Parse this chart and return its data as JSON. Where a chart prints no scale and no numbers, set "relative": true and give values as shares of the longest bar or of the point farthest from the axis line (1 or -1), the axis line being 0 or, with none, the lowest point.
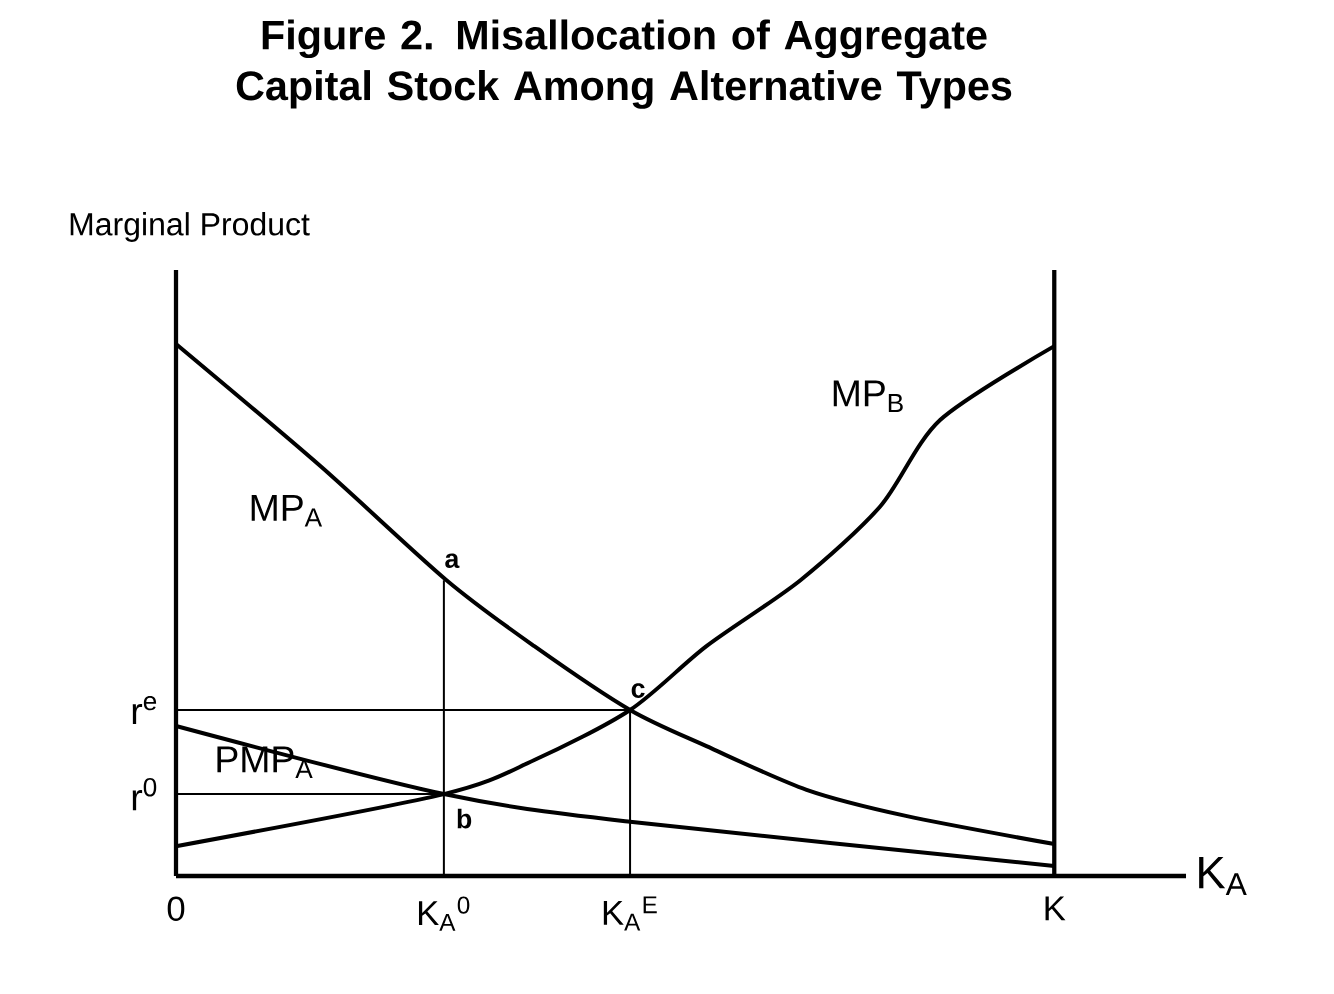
{
  "chart_data": {
    "type": "line",
    "title": "Figure 2.  Misallocation of Aggregate Capital Stock Among Alternative Types",
    "xlabel": "K$_{A}$",
    "ylabel": "Marginal Product",
    "relative": true,
    "marker": "none",
    "line_style": "solid",
    "xlim": [
      0,
      1.15
    ],
    "xticks": [
      {
        "value": 0,
        "label": "0"
      },
      {
        "value": 0.305,
        "label": "K$_{A}$$^{0}$"
      },
      {
        "value": 0.517,
        "label": "K$_{A}$$^{E}$"
      },
      {
        "value": 1,
        "label": "K"
      }
    ],
    "series": [
      {
        "name": "MP$_{A}$",
        "color": "#000000",
        "x": [
          0,
          0.164,
          0.308,
          0.408,
          0.517,
          0.604,
          0.718,
          0.831,
          1.0
        ],
        "values": [
          1.0,
          0.771,
          0.556,
          0.432,
          0.312,
          0.244,
          0.162,
          0.113,
          0.06
        ]
      },
      {
        "name": "MP$_{B}$",
        "color": "#000000",
        "x": [
          0,
          0.305,
          0.408,
          0.517,
          0.604,
          0.711,
          0.802,
          0.87,
          1.0
        ],
        "values": [
          0.056,
          0.154,
          0.218,
          0.312,
          0.432,
          0.556,
          0.695,
          0.857,
          0.996
        ]
      },
      {
        "name": "PMP$_{A}$",
        "color": "#000000",
        "x": [
          0,
          0.305,
          0.517,
          1.0
        ],
        "values": [
          0.282,
          0.154,
          0.102,
          0.019
        ]
      },
      {
        "color": "#000000",
        "x": [
          0,
          0.517
        ],
        "values": [
          0.312,
          0.312
        ]
      },
      {
        "color": "#000000",
        "x": [
          0,
          0.305
        ],
        "values": [
          0.154,
          0.154
        ]
      },
      {
        "color": "#000000",
        "x": [
          0.305,
          0.305
        ],
        "values": [
          0,
          0.556
        ]
      },
      {
        "color": "#000000",
        "x": [
          0.517,
          0.517
        ],
        "values": [
          0,
          0.312
        ]
      }
    ],
    "ref_lines": [
      {
        "axis": "x",
        "value": 1
      }
    ],
    "annotations": [
      {
        "text": "r$^{e}$",
        "x": 0,
        "y": 0.312
      },
      {
        "text": "r$^{0}$",
        "x": 0,
        "y": 0.154
      },
      {
        "text": "a",
        "x": 0.305,
        "y": 0.556
      },
      {
        "text": "b",
        "x": 0.305,
        "y": 0.154
      },
      {
        "text": "c",
        "x": 0.517,
        "y": 0.312
      }
    ]
  }
}
